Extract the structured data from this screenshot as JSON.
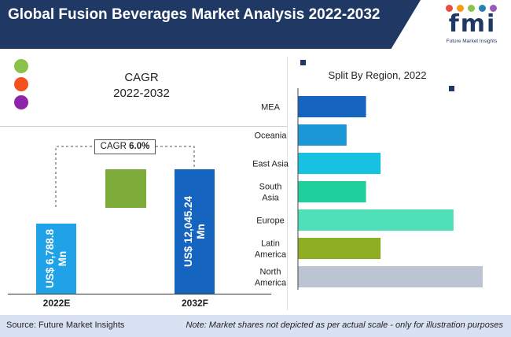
{
  "header": {
    "title": "Global Fusion Beverages Market Analysis 2022-2032"
  },
  "logo": {
    "text": "fmi",
    "subtitle": "Future Market Insights",
    "dot_colors": [
      "#e74c3c",
      "#f39c12",
      "#8bc34a",
      "#2980b9",
      "#9b59b6"
    ]
  },
  "legend": {
    "dot_colors": [
      "#8bc34a",
      "#f4511e",
      "#8e24aa"
    ]
  },
  "cagr_panel": {
    "title_line1": "CAGR",
    "title_line2": "2022-2032",
    "cagr_label": "CAGR",
    "cagr_value": "6.0%"
  },
  "colors": {
    "header_bg": "#1f3864",
    "bar_2022": "#1fa2e8",
    "bar_growth": "#7cab3a",
    "bar_2032": "#1565c0",
    "footer_bg": "#d9e2f3"
  },
  "chart_data": [
    {
      "type": "bar",
      "orientation": "vertical",
      "title": "CAGR 2022-2032",
      "categories": [
        "2022E",
        "2032F"
      ],
      "values": [
        6788.8,
        12045.24
      ],
      "value_labels": [
        "US$ 6,788.8 Mn",
        "US$ 12,045.24 Mn"
      ],
      "unit": "US$ Mn",
      "cagr": "6.0%"
    },
    {
      "type": "bar",
      "orientation": "horizontal",
      "title": "Split By Region, 2022",
      "categories": [
        "MEA",
        "Oceania",
        "East Asia",
        "South Asia",
        "Europe",
        "Latin America",
        "North America"
      ],
      "category_lines": [
        [
          "MEA"
        ],
        [
          "Oceania"
        ],
        [
          "East Asia"
        ],
        [
          "South",
          "Asia"
        ],
        [
          "Europe"
        ],
        [
          "Latin",
          "America"
        ],
        [
          "North",
          "America"
        ]
      ],
      "values": [
        14,
        10,
        17,
        14,
        32,
        17,
        38
      ],
      "colors": [
        "#1565c0",
        "#1b96d6",
        "#17c1e0",
        "#1fcf9c",
        "#4fdfb9",
        "#8ead22",
        "#bcc3d2"
      ],
      "xlim": [
        0,
        40
      ]
    }
  ],
  "footer": {
    "source": "Source: Future Market Insights",
    "note": "Note: Market shares not depicted as per actual scale - only for illustration purposes"
  }
}
